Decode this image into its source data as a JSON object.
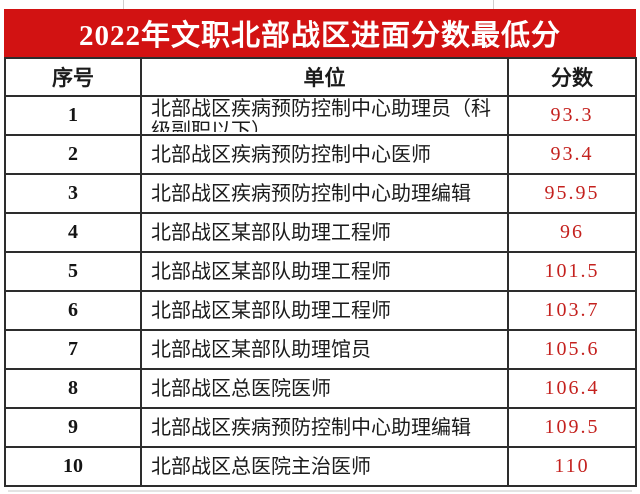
{
  "banner": {
    "bg_color": "#d21212",
    "text_color": "#ffffff"
  },
  "chart_data": {
    "type": "table",
    "title": "2022年文职北部战区进面分数最低分",
    "columns": [
      "序号",
      "单位",
      "分数"
    ],
    "rows": [
      {
        "no": "1",
        "unit": "北部战区疾病预防控制中心助理员（科级副职以下）",
        "score": "93.3"
      },
      {
        "no": "2",
        "unit": "北部战区疾病预防控制中心医师",
        "score": "93.4"
      },
      {
        "no": "3",
        "unit": "北部战区疾病预防控制中心助理编辑",
        "score": "95.95"
      },
      {
        "no": "4",
        "unit": "北部战区某部队助理工程师",
        "score": "96"
      },
      {
        "no": "5",
        "unit": "北部战区某部队助理工程师",
        "score": "101.5"
      },
      {
        "no": "6",
        "unit": "北部战区某部队助理工程师",
        "score": "103.7"
      },
      {
        "no": "7",
        "unit": "北部战区某部队助理馆员",
        "score": "105.6"
      },
      {
        "no": "8",
        "unit": "北部战区总医院医师",
        "score": "106.4"
      },
      {
        "no": "9",
        "unit": "北部战区疾病预防控制中心助理编辑",
        "score": "109.5"
      },
      {
        "no": "10",
        "unit": "北部战区总医院主治医师",
        "score": "110"
      }
    ],
    "score_color": "#c4211e",
    "border_color": "#2d2d2d",
    "text_color": "#1b1b1b",
    "legend": "none",
    "grid": "on"
  }
}
